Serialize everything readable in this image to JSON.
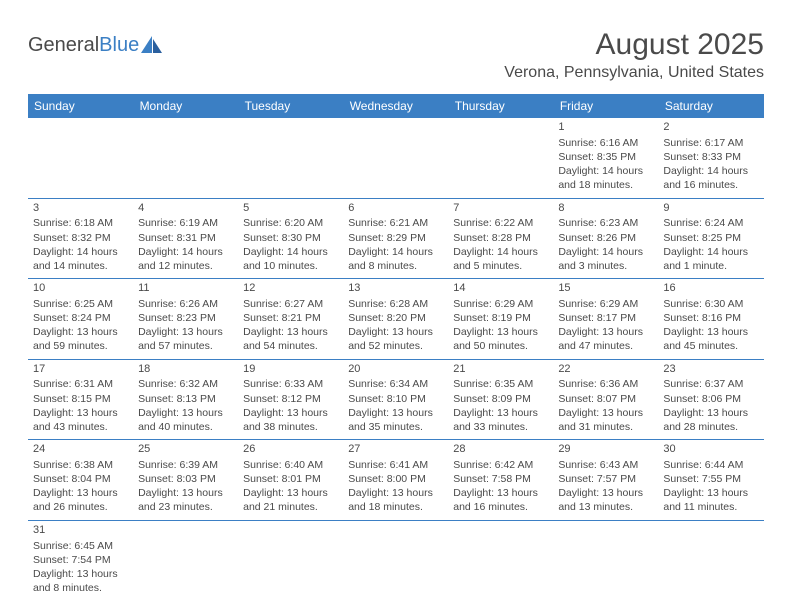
{
  "logo": {
    "text1": "General",
    "text2": "Blue"
  },
  "title": "August 2025",
  "location": "Verona, Pennsylvania, United States",
  "colors": {
    "header_bg": "#3b7fc4",
    "header_text": "#ffffff",
    "text": "#4a4a4a",
    "border": "#3b7fc4",
    "background": "#ffffff"
  },
  "weekdays": [
    "Sunday",
    "Monday",
    "Tuesday",
    "Wednesday",
    "Thursday",
    "Friday",
    "Saturday"
  ],
  "grid": [
    [
      null,
      null,
      null,
      null,
      null,
      {
        "n": "1",
        "sr": "Sunrise: 6:16 AM",
        "ss": "Sunset: 8:35 PM",
        "dl1": "Daylight: 14 hours",
        "dl2": "and 18 minutes."
      },
      {
        "n": "2",
        "sr": "Sunrise: 6:17 AM",
        "ss": "Sunset: 8:33 PM",
        "dl1": "Daylight: 14 hours",
        "dl2": "and 16 minutes."
      }
    ],
    [
      {
        "n": "3",
        "sr": "Sunrise: 6:18 AM",
        "ss": "Sunset: 8:32 PM",
        "dl1": "Daylight: 14 hours",
        "dl2": "and 14 minutes."
      },
      {
        "n": "4",
        "sr": "Sunrise: 6:19 AM",
        "ss": "Sunset: 8:31 PM",
        "dl1": "Daylight: 14 hours",
        "dl2": "and 12 minutes."
      },
      {
        "n": "5",
        "sr": "Sunrise: 6:20 AM",
        "ss": "Sunset: 8:30 PM",
        "dl1": "Daylight: 14 hours",
        "dl2": "and 10 minutes."
      },
      {
        "n": "6",
        "sr": "Sunrise: 6:21 AM",
        "ss": "Sunset: 8:29 PM",
        "dl1": "Daylight: 14 hours",
        "dl2": "and 8 minutes."
      },
      {
        "n": "7",
        "sr": "Sunrise: 6:22 AM",
        "ss": "Sunset: 8:28 PM",
        "dl1": "Daylight: 14 hours",
        "dl2": "and 5 minutes."
      },
      {
        "n": "8",
        "sr": "Sunrise: 6:23 AM",
        "ss": "Sunset: 8:26 PM",
        "dl1": "Daylight: 14 hours",
        "dl2": "and 3 minutes."
      },
      {
        "n": "9",
        "sr": "Sunrise: 6:24 AM",
        "ss": "Sunset: 8:25 PM",
        "dl1": "Daylight: 14 hours",
        "dl2": "and 1 minute."
      }
    ],
    [
      {
        "n": "10",
        "sr": "Sunrise: 6:25 AM",
        "ss": "Sunset: 8:24 PM",
        "dl1": "Daylight: 13 hours",
        "dl2": "and 59 minutes."
      },
      {
        "n": "11",
        "sr": "Sunrise: 6:26 AM",
        "ss": "Sunset: 8:23 PM",
        "dl1": "Daylight: 13 hours",
        "dl2": "and 57 minutes."
      },
      {
        "n": "12",
        "sr": "Sunrise: 6:27 AM",
        "ss": "Sunset: 8:21 PM",
        "dl1": "Daylight: 13 hours",
        "dl2": "and 54 minutes."
      },
      {
        "n": "13",
        "sr": "Sunrise: 6:28 AM",
        "ss": "Sunset: 8:20 PM",
        "dl1": "Daylight: 13 hours",
        "dl2": "and 52 minutes."
      },
      {
        "n": "14",
        "sr": "Sunrise: 6:29 AM",
        "ss": "Sunset: 8:19 PM",
        "dl1": "Daylight: 13 hours",
        "dl2": "and 50 minutes."
      },
      {
        "n": "15",
        "sr": "Sunrise: 6:29 AM",
        "ss": "Sunset: 8:17 PM",
        "dl1": "Daylight: 13 hours",
        "dl2": "and 47 minutes."
      },
      {
        "n": "16",
        "sr": "Sunrise: 6:30 AM",
        "ss": "Sunset: 8:16 PM",
        "dl1": "Daylight: 13 hours",
        "dl2": "and 45 minutes."
      }
    ],
    [
      {
        "n": "17",
        "sr": "Sunrise: 6:31 AM",
        "ss": "Sunset: 8:15 PM",
        "dl1": "Daylight: 13 hours",
        "dl2": "and 43 minutes."
      },
      {
        "n": "18",
        "sr": "Sunrise: 6:32 AM",
        "ss": "Sunset: 8:13 PM",
        "dl1": "Daylight: 13 hours",
        "dl2": "and 40 minutes."
      },
      {
        "n": "19",
        "sr": "Sunrise: 6:33 AM",
        "ss": "Sunset: 8:12 PM",
        "dl1": "Daylight: 13 hours",
        "dl2": "and 38 minutes."
      },
      {
        "n": "20",
        "sr": "Sunrise: 6:34 AM",
        "ss": "Sunset: 8:10 PM",
        "dl1": "Daylight: 13 hours",
        "dl2": "and 35 minutes."
      },
      {
        "n": "21",
        "sr": "Sunrise: 6:35 AM",
        "ss": "Sunset: 8:09 PM",
        "dl1": "Daylight: 13 hours",
        "dl2": "and 33 minutes."
      },
      {
        "n": "22",
        "sr": "Sunrise: 6:36 AM",
        "ss": "Sunset: 8:07 PM",
        "dl1": "Daylight: 13 hours",
        "dl2": "and 31 minutes."
      },
      {
        "n": "23",
        "sr": "Sunrise: 6:37 AM",
        "ss": "Sunset: 8:06 PM",
        "dl1": "Daylight: 13 hours",
        "dl2": "and 28 minutes."
      }
    ],
    [
      {
        "n": "24",
        "sr": "Sunrise: 6:38 AM",
        "ss": "Sunset: 8:04 PM",
        "dl1": "Daylight: 13 hours",
        "dl2": "and 26 minutes."
      },
      {
        "n": "25",
        "sr": "Sunrise: 6:39 AM",
        "ss": "Sunset: 8:03 PM",
        "dl1": "Daylight: 13 hours",
        "dl2": "and 23 minutes."
      },
      {
        "n": "26",
        "sr": "Sunrise: 6:40 AM",
        "ss": "Sunset: 8:01 PM",
        "dl1": "Daylight: 13 hours",
        "dl2": "and 21 minutes."
      },
      {
        "n": "27",
        "sr": "Sunrise: 6:41 AM",
        "ss": "Sunset: 8:00 PM",
        "dl1": "Daylight: 13 hours",
        "dl2": "and 18 minutes."
      },
      {
        "n": "28",
        "sr": "Sunrise: 6:42 AM",
        "ss": "Sunset: 7:58 PM",
        "dl1": "Daylight: 13 hours",
        "dl2": "and 16 minutes."
      },
      {
        "n": "29",
        "sr": "Sunrise: 6:43 AM",
        "ss": "Sunset: 7:57 PM",
        "dl1": "Daylight: 13 hours",
        "dl2": "and 13 minutes."
      },
      {
        "n": "30",
        "sr": "Sunrise: 6:44 AM",
        "ss": "Sunset: 7:55 PM",
        "dl1": "Daylight: 13 hours",
        "dl2": "and 11 minutes."
      }
    ],
    [
      {
        "n": "31",
        "sr": "Sunrise: 6:45 AM",
        "ss": "Sunset: 7:54 PM",
        "dl1": "Daylight: 13 hours",
        "dl2": "and 8 minutes."
      },
      null,
      null,
      null,
      null,
      null,
      null
    ]
  ]
}
